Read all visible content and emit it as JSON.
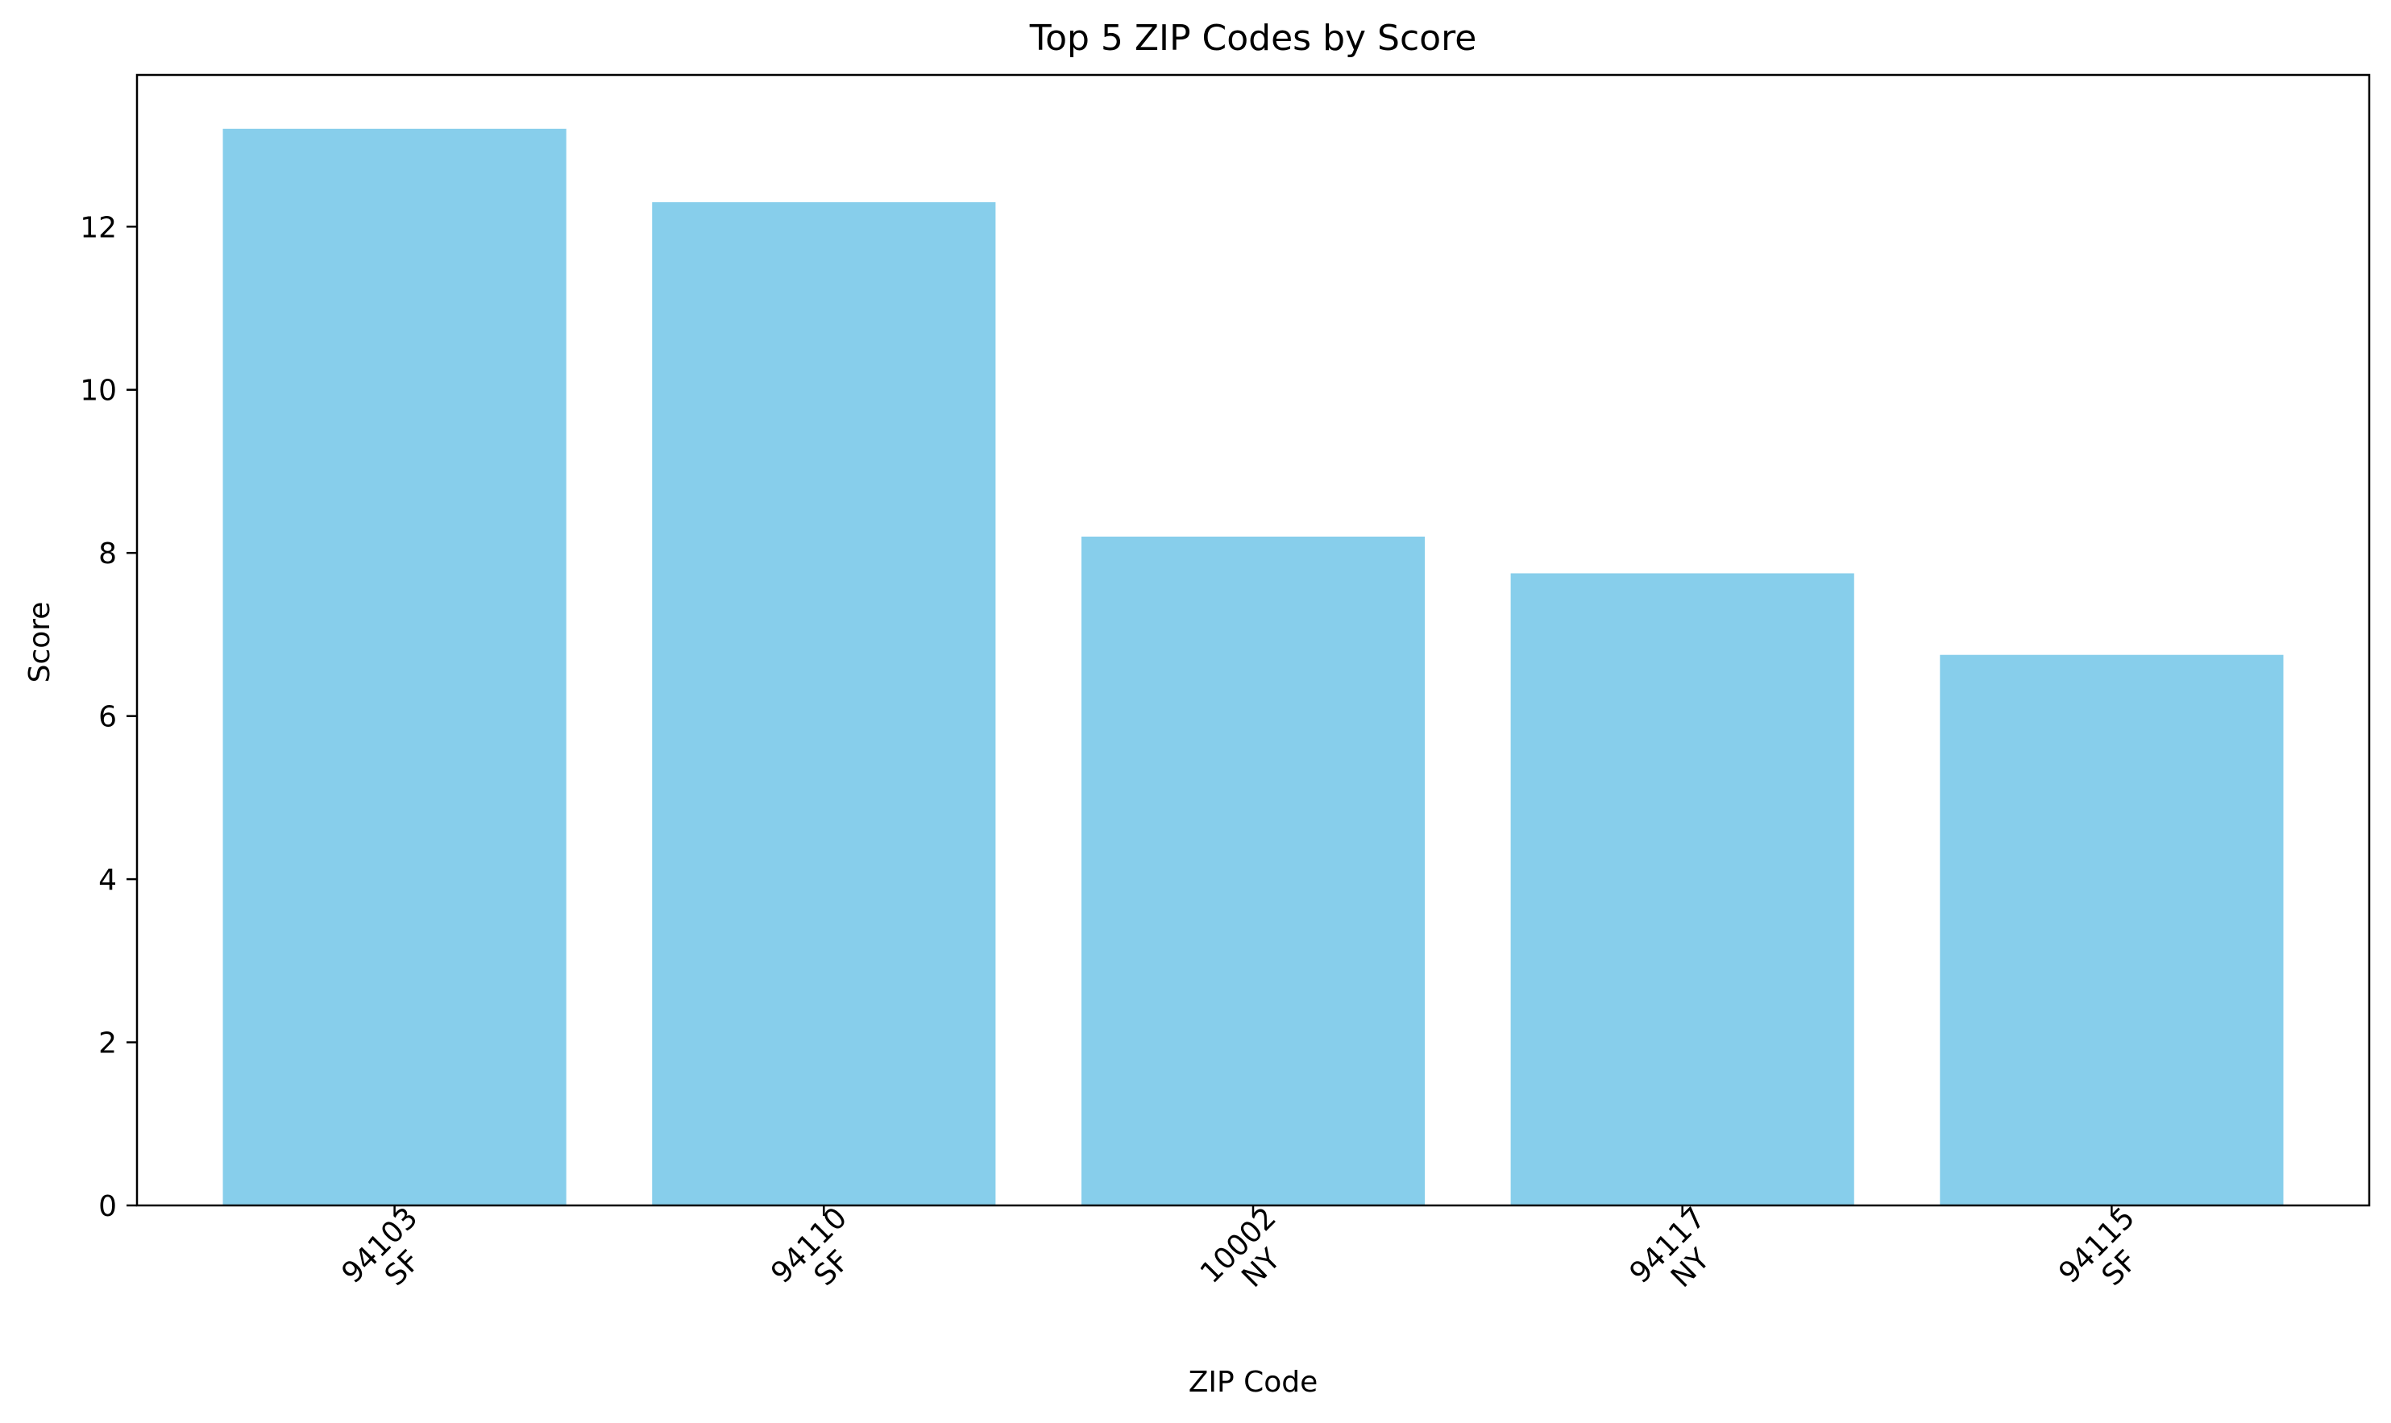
{
  "chart_data": {
    "type": "bar",
    "title": "Top 5 ZIP Codes by Score",
    "xlabel": "ZIP Code",
    "ylabel": "Score",
    "categories": [
      {
        "zip": "94103",
        "city": "SF"
      },
      {
        "zip": "94110",
        "city": "SF"
      },
      {
        "zip": "10002",
        "city": "NY"
      },
      {
        "zip": "94117",
        "city": "NY"
      },
      {
        "zip": "94115",
        "city": "SF"
      }
    ],
    "values": [
      13.2,
      12.3,
      8.2,
      7.75,
      6.75
    ],
    "ylim": [
      0,
      13.86
    ],
    "yticks": [
      "0",
      "2",
      "4",
      "6",
      "8",
      "10",
      "12"
    ],
    "bar_color": "#87CEEB",
    "grid": false,
    "legend": "none"
  }
}
